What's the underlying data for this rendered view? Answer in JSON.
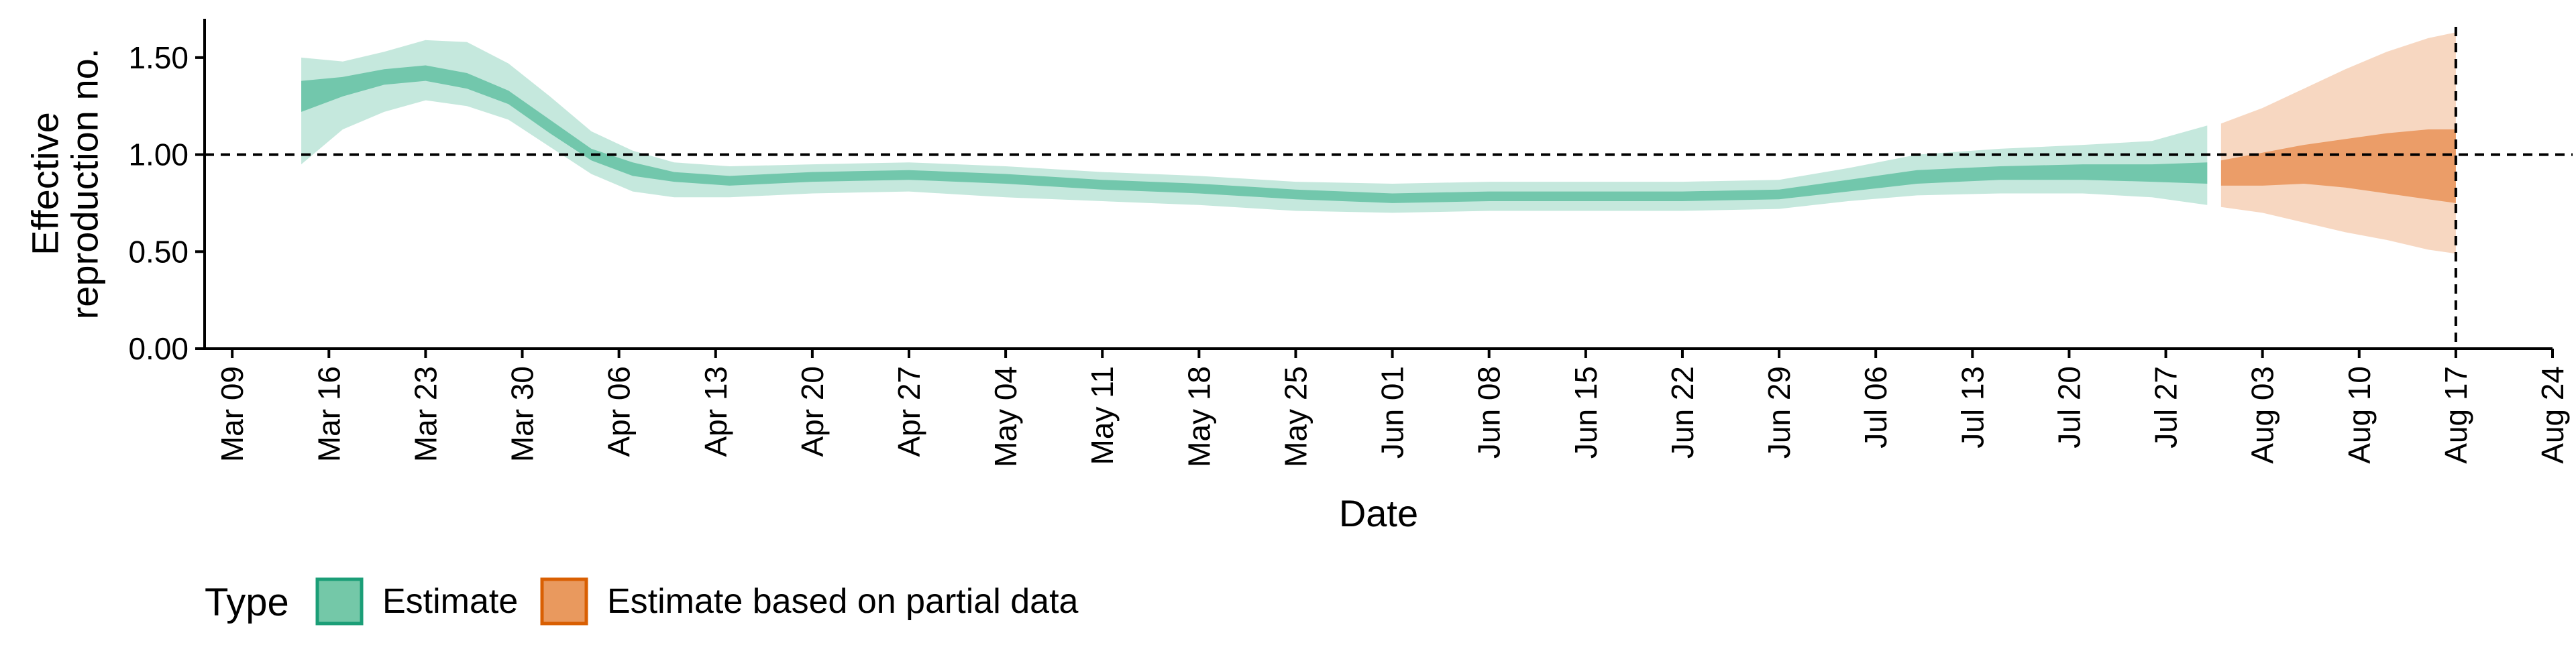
{
  "chart_data": {
    "type": "area",
    "title": "",
    "xlabel": "Date",
    "ylabel_lines": [
      "Effective",
      "reproduction no."
    ],
    "ylim": [
      0,
      1.7
    ],
    "y_ticks": [
      {
        "value": 0.0,
        "label": "0.00"
      },
      {
        "value": 0.5,
        "label": "0.50"
      },
      {
        "value": 1.0,
        "label": "1.00"
      },
      {
        "value": 1.5,
        "label": "1.50"
      }
    ],
    "x_domain": [
      "2020-03-07",
      "2020-08-24"
    ],
    "x_ticks": [
      {
        "date": "2020-03-09",
        "label": "Mar 09"
      },
      {
        "date": "2020-03-16",
        "label": "Mar 16"
      },
      {
        "date": "2020-03-23",
        "label": "Mar 23"
      },
      {
        "date": "2020-03-30",
        "label": "Mar 30"
      },
      {
        "date": "2020-04-06",
        "label": "Apr 06"
      },
      {
        "date": "2020-04-13",
        "label": "Apr 13"
      },
      {
        "date": "2020-04-20",
        "label": "Apr 20"
      },
      {
        "date": "2020-04-27",
        "label": "Apr 27"
      },
      {
        "date": "2020-05-04",
        "label": "May 04"
      },
      {
        "date": "2020-05-11",
        "label": "May 11"
      },
      {
        "date": "2020-05-18",
        "label": "May 18"
      },
      {
        "date": "2020-05-25",
        "label": "May 25"
      },
      {
        "date": "2020-06-01",
        "label": "Jun 01"
      },
      {
        "date": "2020-06-08",
        "label": "Jun 08"
      },
      {
        "date": "2020-06-15",
        "label": "Jun 15"
      },
      {
        "date": "2020-06-22",
        "label": "Jun 22"
      },
      {
        "date": "2020-06-29",
        "label": "Jun 29"
      },
      {
        "date": "2020-07-06",
        "label": "Jul 06"
      },
      {
        "date": "2020-07-13",
        "label": "Jul 13"
      },
      {
        "date": "2020-07-20",
        "label": "Jul 20"
      },
      {
        "date": "2020-07-27",
        "label": "Jul 27"
      },
      {
        "date": "2020-08-03",
        "label": "Aug 03"
      },
      {
        "date": "2020-08-10",
        "label": "Aug 10"
      },
      {
        "date": "2020-08-17",
        "label": "Aug 17"
      },
      {
        "date": "2020-08-24",
        "label": "Aug 24"
      }
    ],
    "reference_lines": {
      "hline_y": 1.0,
      "vline_date": "2020-08-17"
    },
    "series": [
      {
        "name": "Estimate",
        "fill_color": "#66c2a5",
        "border_color": "#1b9e77",
        "points": [
          {
            "x": "2020-03-14",
            "lo90": 0.95,
            "lo50": 1.22,
            "hi50": 1.38,
            "hi90": 1.5
          },
          {
            "x": "2020-03-17",
            "lo90": 1.13,
            "lo50": 1.3,
            "hi50": 1.4,
            "hi90": 1.48
          },
          {
            "x": "2020-03-20",
            "lo90": 1.22,
            "lo50": 1.36,
            "hi50": 1.44,
            "hi90": 1.53
          },
          {
            "x": "2020-03-23",
            "lo90": 1.28,
            "lo50": 1.38,
            "hi50": 1.46,
            "hi90": 1.59
          },
          {
            "x": "2020-03-26",
            "lo90": 1.25,
            "lo50": 1.34,
            "hi50": 1.42,
            "hi90": 1.58
          },
          {
            "x": "2020-03-29",
            "lo90": 1.18,
            "lo50": 1.26,
            "hi50": 1.33,
            "hi90": 1.47
          },
          {
            "x": "2020-04-01",
            "lo90": 1.04,
            "lo50": 1.11,
            "hi50": 1.18,
            "hi90": 1.3
          },
          {
            "x": "2020-04-04",
            "lo90": 0.9,
            "lo50": 0.97,
            "hi50": 1.03,
            "hi90": 1.12
          },
          {
            "x": "2020-04-07",
            "lo90": 0.81,
            "lo50": 0.89,
            "hi50": 0.96,
            "hi90": 1.02
          },
          {
            "x": "2020-04-10",
            "lo90": 0.78,
            "lo50": 0.86,
            "hi50": 0.91,
            "hi90": 0.96
          },
          {
            "x": "2020-04-14",
            "lo90": 0.78,
            "lo50": 0.84,
            "hi50": 0.89,
            "hi90": 0.94
          },
          {
            "x": "2020-04-20",
            "lo90": 0.8,
            "lo50": 0.86,
            "hi50": 0.91,
            "hi90": 0.95
          },
          {
            "x": "2020-04-27",
            "lo90": 0.81,
            "lo50": 0.87,
            "hi50": 0.92,
            "hi90": 0.96
          },
          {
            "x": "2020-05-04",
            "lo90": 0.78,
            "lo50": 0.85,
            "hi50": 0.9,
            "hi90": 0.94
          },
          {
            "x": "2020-05-11",
            "lo90": 0.76,
            "lo50": 0.82,
            "hi50": 0.87,
            "hi90": 0.91
          },
          {
            "x": "2020-05-18",
            "lo90": 0.74,
            "lo50": 0.8,
            "hi50": 0.85,
            "hi90": 0.89
          },
          {
            "x": "2020-05-25",
            "lo90": 0.71,
            "lo50": 0.77,
            "hi50": 0.82,
            "hi90": 0.86
          },
          {
            "x": "2020-06-01",
            "lo90": 0.7,
            "lo50": 0.75,
            "hi50": 0.8,
            "hi90": 0.85
          },
          {
            "x": "2020-06-08",
            "lo90": 0.71,
            "lo50": 0.76,
            "hi50": 0.81,
            "hi90": 0.86
          },
          {
            "x": "2020-06-15",
            "lo90": 0.71,
            "lo50": 0.76,
            "hi50": 0.81,
            "hi90": 0.86
          },
          {
            "x": "2020-06-22",
            "lo90": 0.71,
            "lo50": 0.76,
            "hi50": 0.81,
            "hi90": 0.86
          },
          {
            "x": "2020-06-29",
            "lo90": 0.72,
            "lo50": 0.77,
            "hi50": 0.82,
            "hi90": 0.87
          },
          {
            "x": "2020-07-04",
            "lo90": 0.76,
            "lo50": 0.81,
            "hi50": 0.87,
            "hi90": 0.93
          },
          {
            "x": "2020-07-09",
            "lo90": 0.79,
            "lo50": 0.85,
            "hi50": 0.92,
            "hi90": 1.0
          },
          {
            "x": "2020-07-15",
            "lo90": 0.8,
            "lo50": 0.87,
            "hi50": 0.94,
            "hi90": 1.03
          },
          {
            "x": "2020-07-21",
            "lo90": 0.8,
            "lo50": 0.87,
            "hi50": 0.95,
            "hi90": 1.05
          },
          {
            "x": "2020-07-26",
            "lo90": 0.78,
            "lo50": 0.86,
            "hi50": 0.95,
            "hi90": 1.07
          },
          {
            "x": "2020-07-30",
            "lo90": 0.74,
            "lo50": 0.85,
            "hi50": 0.96,
            "hi90": 1.15
          }
        ]
      },
      {
        "name": "Estimate based on partial data",
        "fill_color": "#e9955b",
        "border_color": "#d95f02",
        "points": [
          {
            "x": "2020-07-31",
            "lo90": 0.73,
            "lo50": 0.84,
            "hi50": 0.97,
            "hi90": 1.16
          },
          {
            "x": "2020-08-03",
            "lo90": 0.7,
            "lo50": 0.84,
            "hi50": 1.01,
            "hi90": 1.24
          },
          {
            "x": "2020-08-06",
            "lo90": 0.65,
            "lo50": 0.85,
            "hi50": 1.05,
            "hi90": 1.34
          },
          {
            "x": "2020-08-09",
            "lo90": 0.6,
            "lo50": 0.83,
            "hi50": 1.08,
            "hi90": 1.44
          },
          {
            "x": "2020-08-12",
            "lo90": 0.56,
            "lo50": 0.8,
            "hi50": 1.11,
            "hi90": 1.53
          },
          {
            "x": "2020-08-15",
            "lo90": 0.51,
            "lo50": 0.77,
            "hi50": 1.13,
            "hi90": 1.6
          },
          {
            "x": "2020-08-17",
            "lo90": 0.49,
            "lo50": 0.75,
            "hi50": 1.13,
            "hi90": 1.63
          }
        ]
      }
    ],
    "legend": {
      "position": "bottom-left",
      "title": "Type",
      "items": [
        {
          "label": "Estimate",
          "fill_color": "#74c8a8",
          "border_color": "#1b9e77"
        },
        {
          "label": "Estimate based on partial data",
          "fill_color": "#e9995e",
          "border_color": "#d95f02"
        }
      ]
    },
    "grid": false
  }
}
